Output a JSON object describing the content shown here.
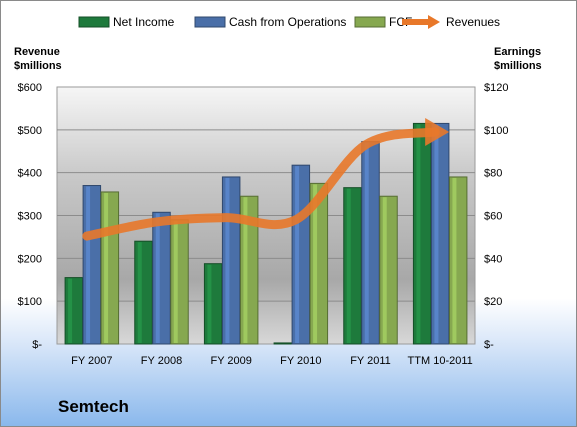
{
  "chart_data": {
    "type": "bar",
    "title": "Semtech",
    "categories": [
      "FY 2007",
      "FY 2008",
      "FY 2009",
      "FY 2010",
      "FY 2011",
      "TTM 10-2011"
    ],
    "series": [
      {
        "name": "Net Income",
        "axis": "right",
        "values": [
          31,
          48,
          37.5,
          0.5,
          73,
          103
        ],
        "color": "#1e7a3c"
      },
      {
        "name": "Cash from Operations",
        "axis": "right",
        "values": [
          74,
          61.5,
          78,
          83.5,
          94.5,
          103
        ],
        "color": "#4a6fa8"
      },
      {
        "name": "FCF",
        "axis": "right",
        "values": [
          71,
          58,
          69,
          75,
          69,
          78
        ],
        "color": "#86a850"
      },
      {
        "name": "Revenues",
        "axis": "left",
        "type": "line",
        "values": [
          252,
          285,
          295,
          290,
          465,
          495
        ],
        "color": "#e8782a"
      }
    ],
    "ylabel_left": "Revenue\n$millions",
    "ylabel_right": "Earnings\n$millions",
    "ylim_left": [
      0,
      600
    ],
    "ylim_right": [
      0,
      120
    ],
    "yticks_left": [
      "$-",
      "$100",
      "$200",
      "$300",
      "$400",
      "$500",
      "$600"
    ],
    "yticks_right": [
      "$-",
      "$20",
      "$40",
      "$60",
      "$80",
      "$100",
      "$120"
    ],
    "legend_position": "top",
    "grid": true
  }
}
